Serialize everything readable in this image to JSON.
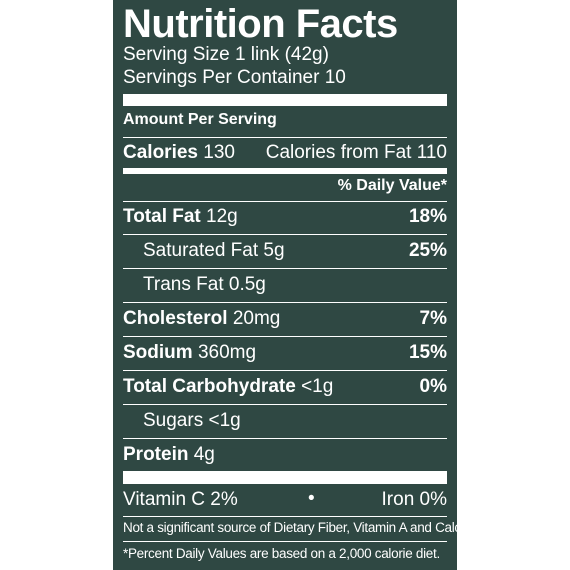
{
  "label": {
    "title": "Nutrition Facts",
    "serving_size": "Serving Size 1 link (42g)",
    "servings_per_container": "Servings Per Container 10",
    "amount_per_serving": "Amount Per Serving",
    "calories_label": "Calories",
    "calories_value": "130",
    "calories_from_fat": "Calories from Fat 110",
    "daily_value_header": "% Daily Value*",
    "nutrients": [
      {
        "name": "Total Fat",
        "amount": "12g",
        "dv": "18%"
      },
      {
        "name": "Saturated Fat",
        "amount": "5g",
        "dv": "25%"
      },
      {
        "name": "Trans Fat",
        "amount": "0.5g",
        "dv": ""
      },
      {
        "name": "Cholesterol",
        "amount": "20mg",
        "dv": "7%"
      },
      {
        "name": "Sodium",
        "amount": "360mg",
        "dv": "15%"
      },
      {
        "name": "Total Carbohydrate",
        "amount": "<1g",
        "dv": "0%"
      },
      {
        "name": "Sugars",
        "amount": "<1g",
        "dv": ""
      },
      {
        "name": "Protein",
        "amount": "4g",
        "dv": ""
      }
    ],
    "vitamin_c": "Vitamin C 2%",
    "bullet": "•",
    "iron": "Iron 0%",
    "footnote_1": "Not a significant source of Dietary Fiber, Vitamin A and Calcium.",
    "footnote_2": "*Percent Daily Values are based on a 2,000 calorie diet."
  },
  "colors": {
    "label_background": "#2f4843",
    "text": "#ffffff",
    "page_background": "#ffffff"
  }
}
